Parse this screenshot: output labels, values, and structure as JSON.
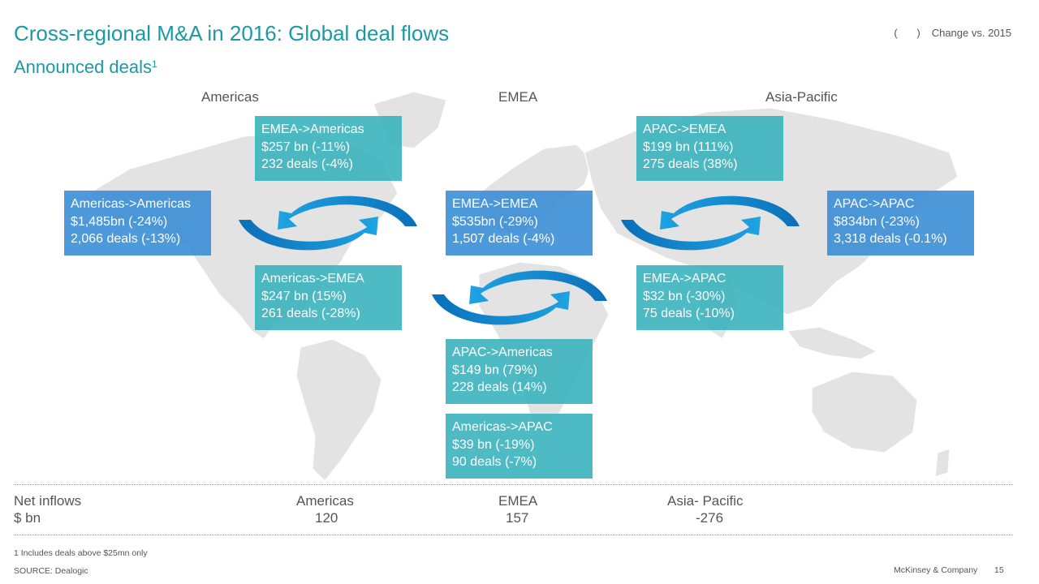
{
  "header": {
    "title": "Cross-regional M&A in 2016: Global deal flows",
    "subtitle": "Announced deals",
    "subtitle_footnote": "1",
    "legend_parens": "( )",
    "legend_text": "Change vs. 2015"
  },
  "regions": {
    "americas": "Americas",
    "emea": "EMEA",
    "apac": "Asia-Pacific"
  },
  "boxes": {
    "americas_americas": {
      "label": "Americas->Americas",
      "value": "$1,485bn (-24%)",
      "deals": "2,066 deals (-13%)"
    },
    "emea_americas": {
      "label": "EMEA->Americas",
      "value": "$257 bn (-11%)",
      "deals": "232 deals (-4%)"
    },
    "americas_emea": {
      "label": "Americas->EMEA",
      "value": "$247 bn (15%)",
      "deals": "261 deals (-28%)"
    },
    "emea_emea": {
      "label": "EMEA->EMEA",
      "value": "$535bn (-29%)",
      "deals": "1,507 deals (-4%)"
    },
    "apac_americas": {
      "label": "APAC->Americas",
      "value": "$149 bn (79%)",
      "deals": "228 deals (14%)"
    },
    "americas_apac": {
      "label": "Americas->APAC",
      "value": "$39 bn (-19%)",
      "deals": "90 deals (-7%)"
    },
    "apac_emea": {
      "label": "APAC->EMEA",
      "value": "$199 bn (111%)",
      "deals": "275 deals (38%)"
    },
    "emea_apac": {
      "label": "EMEA->APAC",
      "value": "$32 bn (-30%)",
      "deals": "75 deals (-10%)"
    },
    "apac_apac": {
      "label": "APAC->APAC",
      "value": "$834bn (-23%)",
      "deals": "3,318 deals (-0.1%)"
    }
  },
  "net_inflows": {
    "label": "Net inflows",
    "unit": "$ bn",
    "americas_label": "Americas",
    "americas_value": "120",
    "emea_label": "EMEA",
    "emea_value": "157",
    "apac_label": "Asia- Pacific",
    "apac_value": "-276"
  },
  "footer": {
    "footnote": "1 Includes deals above $25mn only",
    "source": "SOURCE: Dealogic",
    "brand": "McKinsey & Company",
    "page": "15"
  },
  "colors": {
    "title": "#1a9aa4",
    "teal_box": "#3bb3bd",
    "blue_box": "#3b8ed6",
    "arrow_light": "#1ea3e3",
    "arrow_dark": "#0b6fb8",
    "map": "#e3e3e3"
  }
}
